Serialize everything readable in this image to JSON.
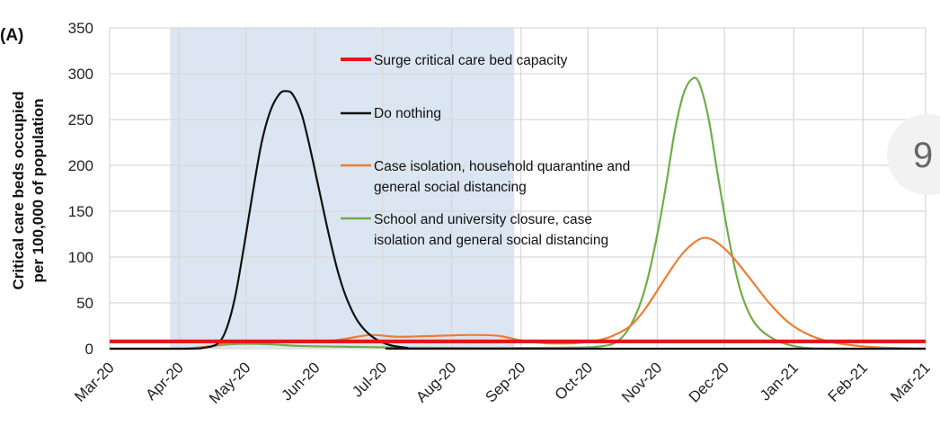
{
  "panel_label": "(A)",
  "badge": {
    "text": "9",
    "color": "#f2f2f2"
  },
  "chart_data": {
    "type": "line",
    "title": "",
    "xlabel": "",
    "ylabel": [
      "Critical care beds occupied",
      "per 100,000 of population"
    ],
    "xlim": [
      "2020-03-01",
      "2021-03-01"
    ],
    "ylim": [
      0,
      350
    ],
    "yticks": [
      0,
      50,
      100,
      150,
      200,
      250,
      300,
      350
    ],
    "xticks": [
      {
        "date": "2020-03-01",
        "label": "Mar-20"
      },
      {
        "date": "2020-04-01",
        "label": "Apr-20"
      },
      {
        "date": "2020-05-01",
        "label": "May-20"
      },
      {
        "date": "2020-06-01",
        "label": "Jun-20"
      },
      {
        "date": "2020-07-01",
        "label": "Jul-20"
      },
      {
        "date": "2020-08-01",
        "label": "Aug-20"
      },
      {
        "date": "2020-09-01",
        "label": "Sep-20"
      },
      {
        "date": "2020-10-01",
        "label": "Oct-20"
      },
      {
        "date": "2020-11-01",
        "label": "Nov-20"
      },
      {
        "date": "2020-12-01",
        "label": "Dec-20"
      },
      {
        "date": "2021-01-01",
        "label": "Jan-21"
      },
      {
        "date": "2021-02-01",
        "label": "Feb-21"
      },
      {
        "date": "2021-03-01",
        "label": "Mar-21"
      }
    ],
    "grid": true,
    "legend_position": "inside-top-center",
    "shaded_period": {
      "start": "2020-03-28",
      "end": "2020-08-29",
      "color": "#dce6f2"
    },
    "series": [
      {
        "name": "Surge critical care bed capacity",
        "color": "#e3161b",
        "width": 4,
        "points": [
          [
            "2020-03-01",
            8
          ],
          [
            "2021-03-01",
            8
          ]
        ]
      },
      {
        "name": "Do nothing",
        "color": "#111111",
        "width": 2.2,
        "points": [
          [
            "2020-03-01",
            0
          ],
          [
            "2020-04-05",
            0
          ],
          [
            "2020-04-12",
            1
          ],
          [
            "2020-04-18",
            5
          ],
          [
            "2020-04-22",
            20
          ],
          [
            "2020-04-26",
            55
          ],
          [
            "2020-04-30",
            110
          ],
          [
            "2020-05-04",
            170
          ],
          [
            "2020-05-08",
            225
          ],
          [
            "2020-05-12",
            260
          ],
          [
            "2020-05-16",
            278
          ],
          [
            "2020-05-19",
            281
          ],
          [
            "2020-05-22",
            277
          ],
          [
            "2020-05-26",
            255
          ],
          [
            "2020-05-30",
            215
          ],
          [
            "2020-06-03",
            170
          ],
          [
            "2020-06-07",
            125
          ],
          [
            "2020-06-11",
            85
          ],
          [
            "2020-06-15",
            55
          ],
          [
            "2020-06-20",
            30
          ],
          [
            "2020-06-26",
            14
          ],
          [
            "2020-07-03",
            5
          ],
          [
            "2020-07-12",
            1
          ],
          [
            "2020-07-22",
            0
          ],
          [
            "2021-03-01",
            0
          ]
        ]
      },
      {
        "name": "Case isolation, household quarantine and general social distancing",
        "color": "#ed7d31",
        "width": 2.2,
        "points": [
          [
            "2020-03-01",
            0
          ],
          [
            "2020-04-01",
            0
          ],
          [
            "2020-04-10",
            1
          ],
          [
            "2020-04-20",
            5
          ],
          [
            "2020-05-01",
            8
          ],
          [
            "2020-05-20",
            8
          ],
          [
            "2020-06-05",
            8
          ],
          [
            "2020-06-15",
            11
          ],
          [
            "2020-06-26",
            15
          ],
          [
            "2020-07-08",
            13
          ],
          [
            "2020-07-25",
            14
          ],
          [
            "2020-08-10",
            15
          ],
          [
            "2020-08-22",
            14
          ],
          [
            "2020-09-01",
            9
          ],
          [
            "2020-09-12",
            6
          ],
          [
            "2020-09-25",
            6
          ],
          [
            "2020-10-05",
            9
          ],
          [
            "2020-10-12",
            14
          ],
          [
            "2020-10-20",
            25
          ],
          [
            "2020-10-27",
            45
          ],
          [
            "2020-11-04",
            75
          ],
          [
            "2020-11-11",
            100
          ],
          [
            "2020-11-17",
            115
          ],
          [
            "2020-11-22",
            121
          ],
          [
            "2020-11-27",
            117
          ],
          [
            "2020-12-04",
            102
          ],
          [
            "2020-12-12",
            78
          ],
          [
            "2020-12-21",
            50
          ],
          [
            "2020-12-30",
            28
          ],
          [
            "2021-01-08",
            15
          ],
          [
            "2021-01-18",
            7
          ],
          [
            "2021-01-30",
            3
          ],
          [
            "2021-02-12",
            1
          ],
          [
            "2021-03-01",
            0
          ]
        ]
      },
      {
        "name": "School and university closure, case isolation and general social distancing",
        "color": "#70ad47",
        "width": 2.2,
        "points": [
          [
            "2020-03-01",
            0
          ],
          [
            "2020-04-01",
            0
          ],
          [
            "2020-04-12",
            2
          ],
          [
            "2020-04-25",
            5
          ],
          [
            "2020-05-10",
            5
          ],
          [
            "2020-05-25",
            3
          ],
          [
            "2020-06-20",
            2
          ],
          [
            "2020-07-20",
            1
          ],
          [
            "2020-09-15",
            1
          ],
          [
            "2020-10-08",
            3
          ],
          [
            "2020-10-16",
            12
          ],
          [
            "2020-10-22",
            35
          ],
          [
            "2020-10-27",
            70
          ],
          [
            "2020-11-01",
            125
          ],
          [
            "2020-11-05",
            180
          ],
          [
            "2020-11-09",
            240
          ],
          [
            "2020-11-13",
            280
          ],
          [
            "2020-11-17",
            295
          ],
          [
            "2020-11-20",
            288
          ],
          [
            "2020-11-24",
            250
          ],
          [
            "2020-11-28",
            190
          ],
          [
            "2020-12-03",
            120
          ],
          [
            "2020-12-08",
            65
          ],
          [
            "2020-12-14",
            30
          ],
          [
            "2020-12-22",
            12
          ],
          [
            "2021-01-01",
            3
          ],
          [
            "2021-01-15",
            0
          ],
          [
            "2021-03-01",
            0
          ]
        ]
      }
    ]
  }
}
